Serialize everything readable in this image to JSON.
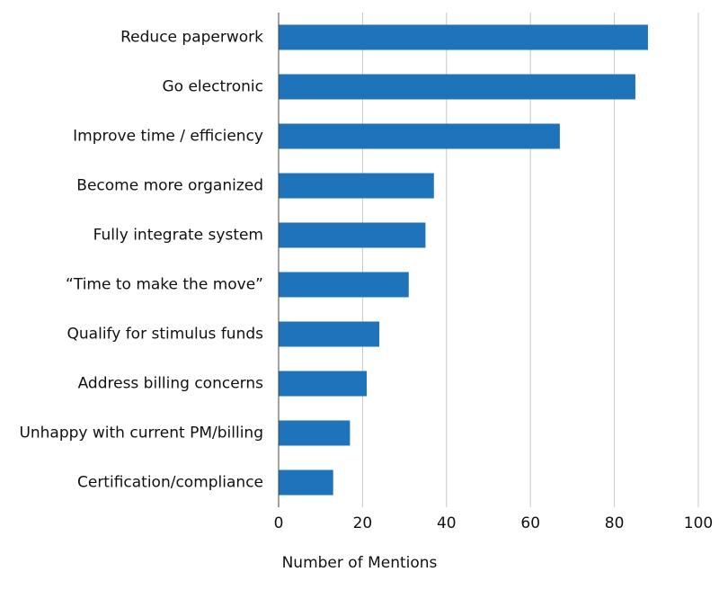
{
  "chart_data": {
    "type": "bar",
    "orientation": "horizontal",
    "xlabel": "Number of Mentions",
    "categories": [
      "Reduce paperwork",
      "Go electronic",
      "Improve time / efficiency",
      "Become more organized",
      "Fully integrate system",
      "“Time to make the move”",
      "Qualify for stimulus funds",
      "Address billing concerns",
      "Unhappy with current PM/billing",
      "Certification/compliance"
    ],
    "values": [
      88,
      85,
      67,
      37,
      35,
      31,
      24,
      21,
      17,
      13
    ],
    "color": "#1f73bb",
    "xlim": [
      0,
      100
    ],
    "xticks": [
      0,
      20,
      40,
      60,
      80,
      100
    ],
    "grid": true
  }
}
